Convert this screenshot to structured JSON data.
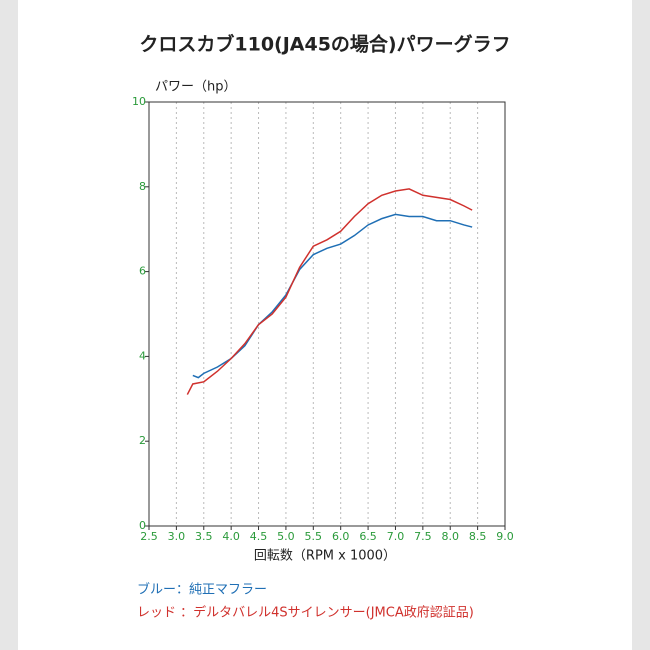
{
  "chart_data": {
    "type": "line",
    "title": "クロスカブ110(JA45の場合)パワーグラフ",
    "y_label": "パワー（hp）",
    "x_label": "回転数（RPM x 1000）",
    "xlim": [
      2.5,
      9.0
    ],
    "ylim": [
      0,
      10
    ],
    "xticks": [
      2.5,
      {
        "value": 3,
        "label": "3.0"
      },
      3.5,
      {
        "value": 4,
        "label": "4.0"
      },
      4.5,
      {
        "value": 5,
        "label": "5.0"
      },
      5.5,
      {
        "value": 6,
        "label": "6.0"
      },
      6.5,
      {
        "value": 7,
        "label": "7.0"
      },
      7.5,
      {
        "value": 8,
        "label": "8.0"
      },
      8.5,
      {
        "value": 9,
        "label": "9.0"
      }
    ],
    "yticks": [
      0,
      2,
      4,
      6,
      8,
      10
    ],
    "grid": "x",
    "tick_color": "#2a9a3a",
    "series": [
      {
        "name": "ブルー：純正マフラー",
        "color": "#1f6fb5",
        "x": [
          3.3,
          3.4,
          3.5,
          3.75,
          4.0,
          4.25,
          4.5,
          4.75,
          5.0,
          5.25,
          5.5,
          5.75,
          6.0,
          6.25,
          6.5,
          6.75,
          7.0,
          7.25,
          7.5,
          7.75,
          8.0,
          8.25,
          8.4
        ],
        "values": [
          3.55,
          3.5,
          3.6,
          3.75,
          3.95,
          4.25,
          4.75,
          5.05,
          5.45,
          6.05,
          6.4,
          6.55,
          6.65,
          6.85,
          7.1,
          7.25,
          7.35,
          7.3,
          7.3,
          7.2,
          7.2,
          7.1,
          7.05
        ]
      },
      {
        "name": "レッド ：デルタバレル4Sサイレンサー(JMCA政府認証品)",
        "color": "#d0312d",
        "x": [
          3.2,
          3.3,
          3.5,
          3.75,
          4.0,
          4.25,
          4.5,
          4.75,
          5.0,
          5.25,
          5.5,
          5.75,
          6.0,
          6.25,
          6.5,
          6.75,
          7.0,
          7.25,
          7.5,
          7.75,
          8.0,
          8.25,
          8.4
        ],
        "values": [
          3.1,
          3.35,
          3.4,
          3.65,
          3.95,
          4.3,
          4.75,
          5.0,
          5.4,
          6.1,
          6.6,
          6.75,
          6.95,
          7.3,
          7.6,
          7.8,
          7.9,
          7.95,
          7.8,
          7.75,
          7.7,
          7.55,
          7.45
        ]
      }
    ]
  }
}
